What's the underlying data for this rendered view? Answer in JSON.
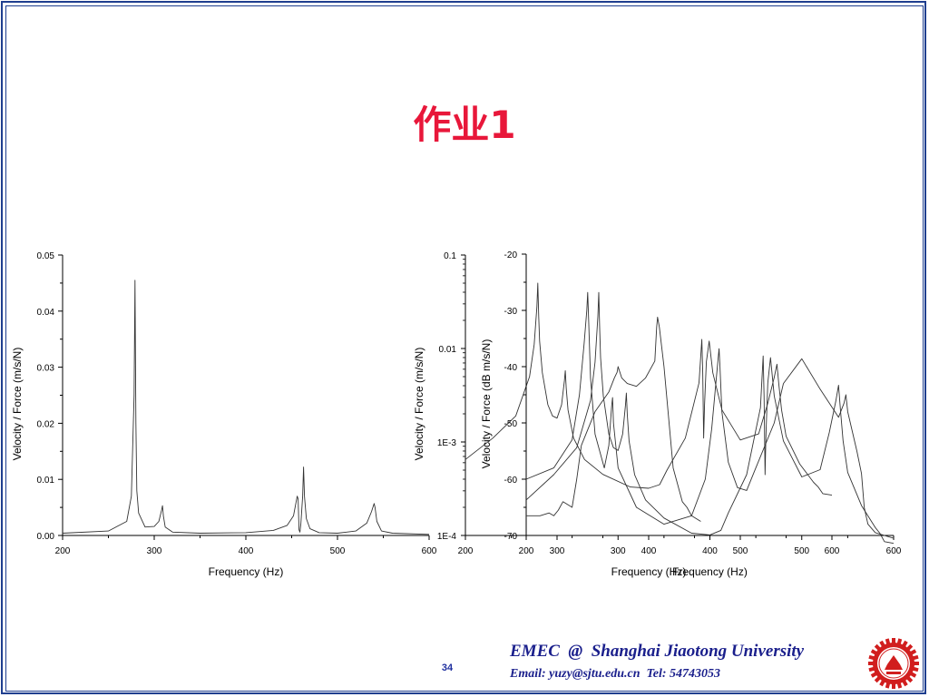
{
  "slide": {
    "title": "作业1",
    "page_number": "34",
    "footer": {
      "line1": "EMEC  @  Shanghai Jiaotong University",
      "line2": "Email: yuzy@sjtu.edu.cn  Tel: 54743053"
    },
    "colors": {
      "title": "#e8173a",
      "footer_text": "#1a1f8c",
      "frame": "#1f3f8f",
      "logo": "#d11e1e",
      "curve": "#333333"
    }
  },
  "chart_data": [
    {
      "type": "line",
      "title": "",
      "xlabel": "Frequency (Hz)",
      "ylabel": "Velocity / Force  (m/s/N)",
      "xlim": [
        200,
        600
      ],
      "ylim": [
        0,
        0.05
      ],
      "x_ticks": [
        200,
        300,
        400,
        500,
        600
      ],
      "x_tick_labels": [
        "200",
        "300",
        "400",
        "500",
        "600"
      ],
      "y_ticks": [
        0,
        0.01,
        0.02,
        0.03,
        0.04,
        0.05
      ],
      "y_tick_labels": [
        "0.00",
        "0.01",
        "0.02",
        "0.03",
        "0.04",
        "0.05"
      ],
      "grid": false,
      "series": [
        {
          "x": [
            200,
            250,
            270,
            275,
            278,
            279,
            280,
            281,
            283,
            290,
            300,
            305,
            308,
            309,
            310,
            312,
            320,
            350,
            400,
            430,
            445,
            452,
            456,
            457,
            458,
            459,
            460,
            462,
            463,
            464,
            466,
            470,
            480,
            500,
            520,
            532,
            537,
            540,
            541,
            543,
            548,
            560,
            600
          ],
          "y": [
            0.0004,
            0.0008,
            0.0025,
            0.007,
            0.025,
            0.0455,
            0.02,
            0.008,
            0.004,
            0.0015,
            0.0016,
            0.0025,
            0.0045,
            0.0053,
            0.0035,
            0.0015,
            0.0006,
            0.0004,
            0.0005,
            0.0009,
            0.0018,
            0.0035,
            0.007,
            0.0065,
            0.001,
            0.0006,
            0.002,
            0.007,
            0.0122,
            0.007,
            0.003,
            0.0012,
            0.0005,
            0.0004,
            0.0008,
            0.0022,
            0.0042,
            0.0057,
            0.005,
            0.0025,
            0.0008,
            0.0004,
            0.0002
          ]
        }
      ]
    },
    {
      "type": "line",
      "title": "",
      "xlabel": "Frequency (Hz)",
      "ylabel": "Velocity / Force  (m/s/N)",
      "yscale": "log",
      "xlim": [
        200,
        600
      ],
      "ylim": [
        0.0001,
        0.1
      ],
      "x_ticks": [
        200,
        300,
        400,
        500,
        600
      ],
      "x_tick_labels": [
        "200",
        "300",
        "400",
        "500",
        "600"
      ],
      "y_ticks": [
        0.0001,
        0.001,
        0.01,
        0.1
      ],
      "y_tick_labels": [
        "1E-4",
        "1E-3",
        "0.01",
        "0.1"
      ],
      "grid": false,
      "series": [
        {
          "x": [
            200,
            230,
            255,
            270,
            275,
            278,
            279,
            280,
            281,
            284,
            290,
            295,
            300,
            305,
            308,
            309,
            310,
            312,
            318,
            330,
            350,
            380,
            400,
            412,
            420,
            440,
            455,
            458,
            459,
            460,
            461,
            463,
            466,
            470,
            480,
            500,
            520,
            530,
            537,
            540,
            542,
            545,
            550,
            565,
            580,
            585,
            590,
            600
          ],
          "y": [
            0.00065,
            0.0011,
            0.0019,
            0.005,
            0.011,
            0.028,
            0.05,
            0.022,
            0.012,
            0.0055,
            0.0025,
            0.0019,
            0.0018,
            0.0025,
            0.0045,
            0.0058,
            0.0038,
            0.0022,
            0.0011,
            0.00065,
            0.00045,
            0.00033,
            0.00032,
            0.00035,
            0.0005,
            0.0011,
            0.0043,
            0.0125,
            0.0055,
            0.0011,
            0.0025,
            0.0072,
            0.012,
            0.0055,
            0.0022,
            0.00105,
            0.00122,
            0.0026,
            0.0049,
            0.0068,
            0.0042,
            0.0022,
            0.00115,
            0.00058,
            0.00037,
            0.00033,
            0.00028,
            0.00027
          ]
        }
      ]
    },
    {
      "type": "line",
      "title": "",
      "xlabel": "Frequency (Hz)",
      "ylabel": "Velocity / Force  (dB m/s/N)",
      "xlim": [
        200,
        600
      ],
      "ylim": [
        -70,
        -20
      ],
      "x_ticks": [
        200,
        300,
        400,
        500,
        600
      ],
      "x_tick_labels": [
        "200",
        "300",
        "400",
        "500",
        "600"
      ],
      "y_ticks": [
        -70,
        -60,
        -50,
        -40,
        -30,
        -20
      ],
      "y_tick_labels": [
        "-70",
        "-60",
        "-50",
        "-40",
        "-30",
        "-20"
      ],
      "grid": false,
      "series": [
        {
          "x": [
            200,
            230,
            255,
            270,
            275,
            278,
            279,
            280,
            281,
            284,
            290,
            295,
            300,
            305,
            308,
            309,
            310,
            312,
            318,
            330,
            350,
            380,
            400,
            412,
            420,
            440,
            455,
            458,
            459,
            460,
            461,
            463,
            466,
            470,
            480,
            500,
            520,
            530,
            537,
            540,
            542,
            545,
            550,
            565,
            580,
            585,
            590,
            600
          ],
          "y": [
            -63.7,
            -59.2,
            -54.4,
            -46.0,
            -39.2,
            -31.1,
            -26.8,
            -33.2,
            -38.4,
            -45.2,
            -52.0,
            -54.4,
            -54.9,
            -52.0,
            -46.9,
            -44.7,
            -48.4,
            -53.2,
            -59.2,
            -63.7,
            -66.9,
            -69.6,
            -69.9,
            -69.1,
            -66.0,
            -59.2,
            -47.3,
            -38.1,
            -45.2,
            -59.2,
            -52.0,
            -42.9,
            -38.4,
            -45.2,
            -53.2,
            -59.6,
            -58.3,
            -51.7,
            -46.2,
            -43.3,
            -47.5,
            -53.2,
            -58.8,
            -64.7,
            -68.6,
            -69.6,
            -71.1,
            -71.4
          ]
        },
        {
          "x": [
            200,
            230,
            250,
            258,
            263,
            266,
            267,
            268,
            270,
            275,
            285,
            290,
            293,
            294,
            295,
            300,
            320,
            350,
            380,
            395,
            402,
            407,
            409,
            410,
            411,
            413,
            420,
            430,
            440,
            450,
            470,
            480,
            500,
            520,
            540,
            546,
            548,
            550,
            560,
            565,
            568,
            570,
            572,
            580,
            600
          ],
          "y": [
            -60,
            -58,
            -53,
            -45,
            -36,
            -30,
            -26.8,
            -32,
            -42,
            -52,
            -58,
            -54,
            -47,
            -45.5,
            -50,
            -58,
            -65,
            -68,
            -66.5,
            -60,
            -51,
            -42,
            -38.5,
            -36.8,
            -40,
            -48,
            -57,
            -61.5,
            -62,
            -58,
            -50,
            -43,
            -38.6,
            -44,
            -49,
            -46.5,
            -45,
            -48,
            -55,
            -59,
            -65,
            -66.5,
            -68,
            -69.5,
            -70.5
          ]
        },
        {
          "x": [
            200,
            215,
            225,
            230,
            235,
            240,
            245,
            250,
            255,
            260,
            275,
            290,
            296,
            299,
            300,
            301,
            304,
            310,
            320,
            330,
            340,
            342,
            343,
            345,
            350,
            360,
            370,
            375,
            380,
            385,
            390
          ],
          "y": [
            -66.5,
            -66.5,
            -66,
            -66.5,
            -65.5,
            -64,
            -64.5,
            -65,
            -60,
            -54,
            -48,
            -44.5,
            -42,
            -41,
            -40,
            -40.5,
            -42,
            -43,
            -43.5,
            -42,
            -39,
            -33,
            -31.2,
            -33,
            -40,
            -58,
            -64,
            -65,
            -66.5,
            -67,
            -67.5
          ]
        }
      ]
    }
  ]
}
